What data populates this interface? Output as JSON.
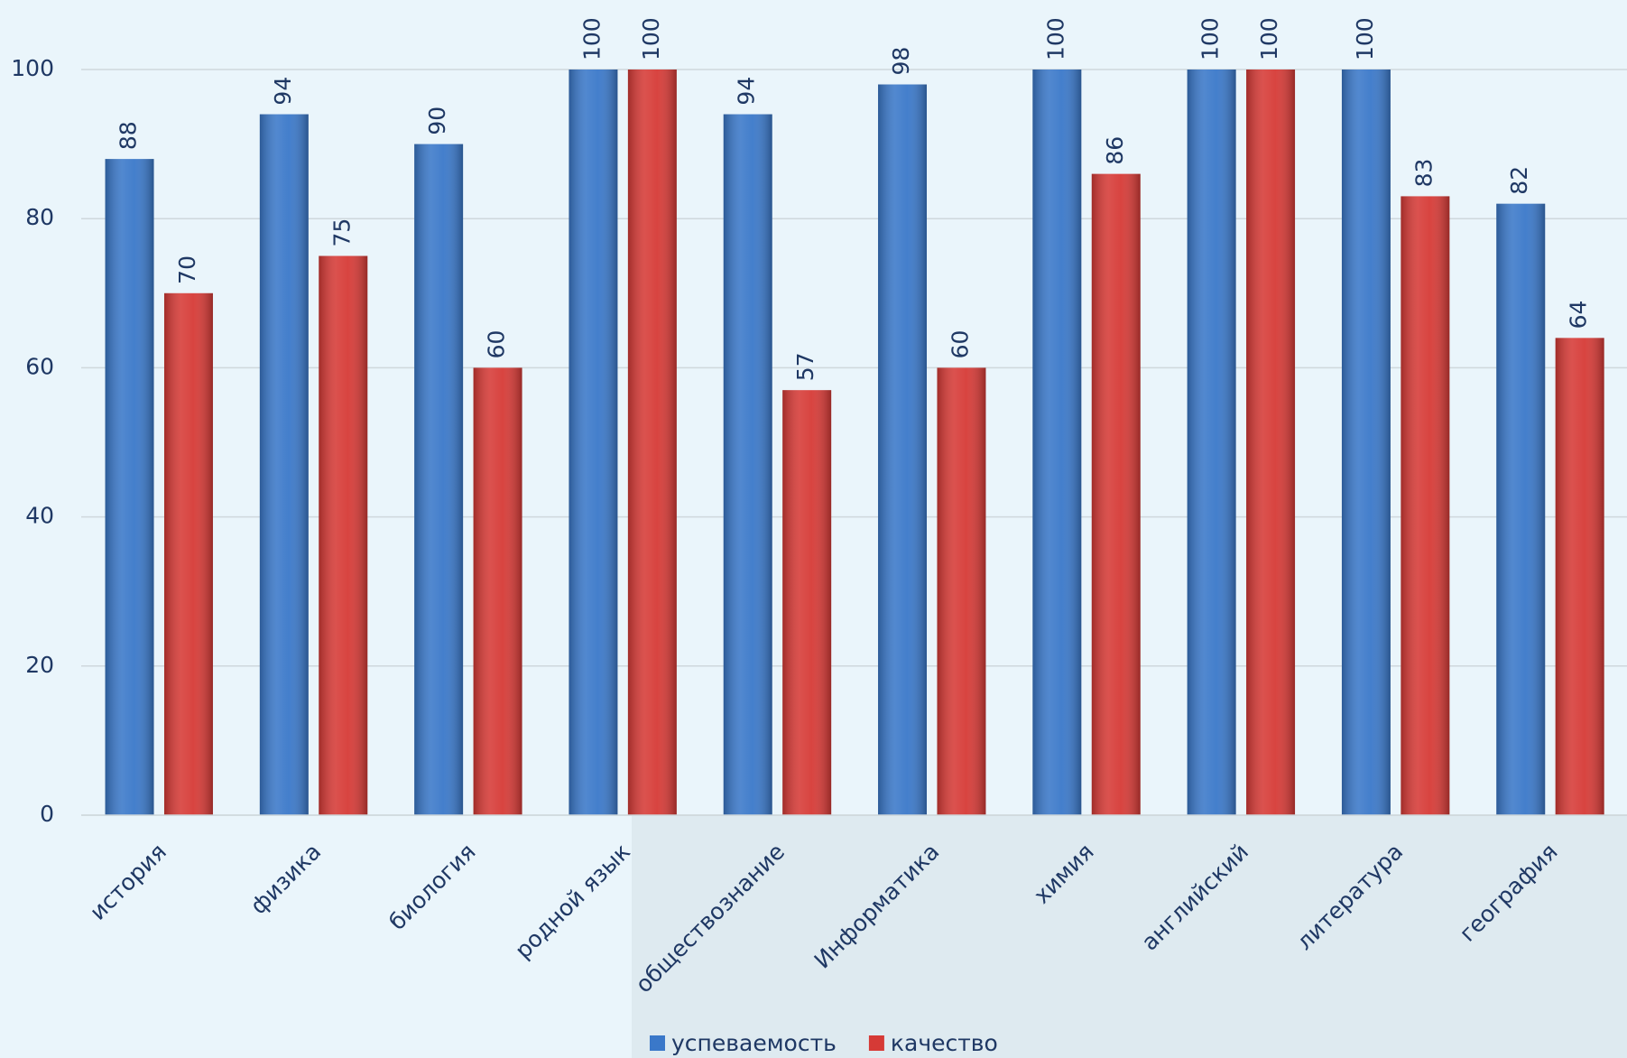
{
  "chart_data": {
    "type": "bar",
    "categories": [
      "история",
      "физика",
      "биология",
      "родной язык",
      "обществознание",
      "Информатика",
      "химия",
      "английский",
      "литература",
      "география"
    ],
    "series": [
      {
        "name": "успеваемость",
        "color": "#3a78c9",
        "values": [
          88,
          94,
          90,
          100,
          94,
          98,
          100,
          100,
          100,
          82
        ]
      },
      {
        "name": "качество",
        "color": "#d63a36",
        "values": [
          70,
          75,
          60,
          100,
          57,
          60,
          86,
          100,
          83,
          64
        ]
      }
    ],
    "ylim": [
      0,
      100
    ],
    "yticks": [
      0,
      20,
      40,
      60,
      80,
      100
    ],
    "grid": true,
    "legend": "bottom"
  }
}
